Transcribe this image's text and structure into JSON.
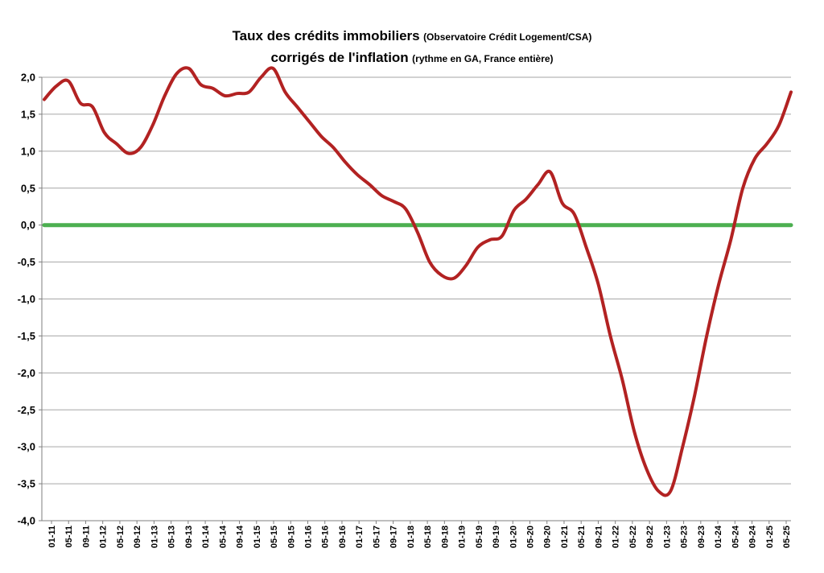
{
  "title": {
    "line1_main": "Taux des crédits immobiliers",
    "line1_sub": "(Observatoire Crédit Logement/CSA)",
    "line2_main": "corrigés de l'inflation",
    "line2_sub": "(rythme en GA, France entière)"
  },
  "chart_data": {
    "type": "line",
    "ylim": [
      -4.0,
      2.0
    ],
    "y_ticks": [
      "2,0",
      "1,5",
      "1,0",
      "0,5",
      "0,0",
      "-0,5",
      "-1,0",
      "-1,5",
      "-2,0",
      "-2,5",
      "-3,0",
      "-3,5",
      "-4,0"
    ],
    "y_tick_values": [
      2.0,
      1.5,
      1.0,
      0.5,
      0.0,
      -0.5,
      -1.0,
      -1.5,
      -2.0,
      -2.5,
      -3.0,
      -3.5,
      -4.0
    ],
    "x_tick_labels": [
      "01-11",
      "05-11",
      "09-11",
      "01-12",
      "05-12",
      "09-12",
      "01-13",
      "05-13",
      "09-13",
      "01-14",
      "05-14",
      "09-14",
      "01-15",
      "05-15",
      "09-15",
      "01-16",
      "05-16",
      "09-16",
      "01-17",
      "05-17",
      "09-17",
      "01-18",
      "05-18",
      "09-18",
      "01-19",
      "05-19",
      "09-19",
      "01-20",
      "05-20",
      "09-20",
      "01-21",
      "05-21",
      "09-21",
      "01-22",
      "05-22",
      "09-22",
      "01-23",
      "05-23",
      "09-23",
      "01-24",
      "05-24",
      "09-24",
      "01-25",
      "05-25"
    ],
    "grid": true,
    "series": [
      {
        "color": "#b22222",
        "values": [
          1.7,
          1.88,
          1.95,
          1.65,
          1.6,
          1.25,
          1.1,
          0.97,
          1.05,
          1.35,
          1.75,
          2.05,
          2.12,
          1.9,
          1.85,
          1.75,
          1.78,
          1.8,
          2.0,
          2.12,
          1.8,
          1.6,
          1.4,
          1.2,
          1.05,
          0.85,
          0.68,
          0.55,
          0.4,
          0.32,
          0.22,
          -0.1,
          -0.5,
          -0.68,
          -0.72,
          -0.55,
          -0.3,
          -0.2,
          -0.15,
          0.2,
          0.35,
          0.55,
          0.72,
          0.3,
          0.15,
          -0.3,
          -0.8,
          -1.5,
          -2.1,
          -2.8,
          -3.3,
          -3.6,
          -3.6,
          -3.0,
          -2.3,
          -1.5,
          -0.8,
          -0.2,
          0.5,
          0.9,
          1.1,
          1.35,
          1.8
        ]
      },
      {
        "color": "#4caf50",
        "values": [
          0.0,
          0.0
        ]
      }
    ]
  }
}
